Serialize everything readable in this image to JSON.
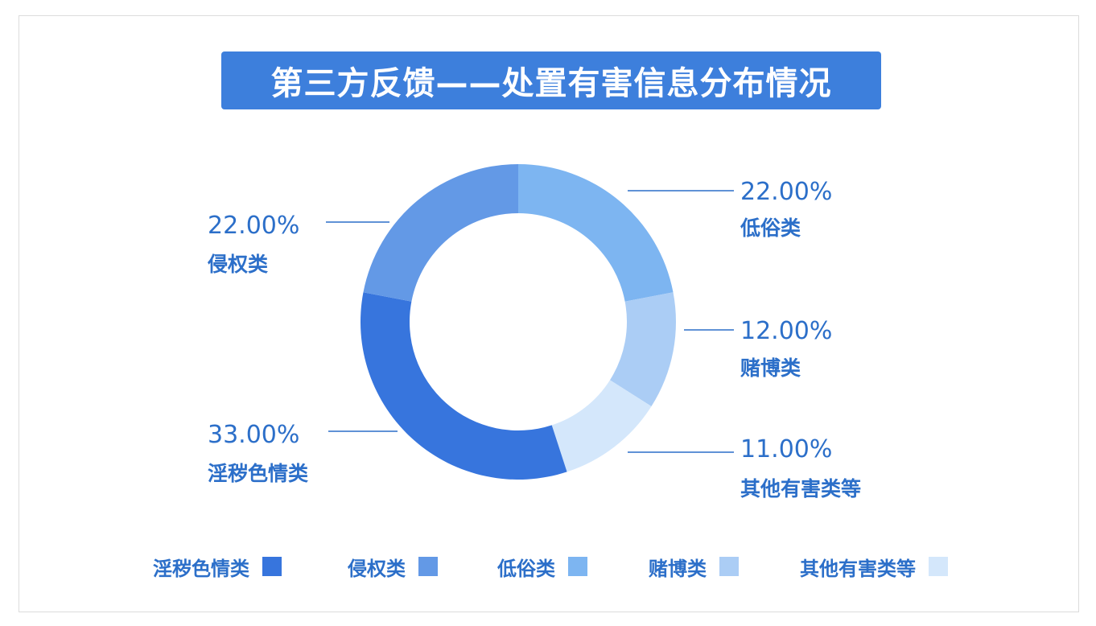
{
  "chart_data": {
    "type": "pie",
    "title": "第三方反馈——处置有害信息分布情况",
    "categories": [
      "淫秽色情类",
      "侵权类",
      "低俗类",
      "赌博类",
      "其他有害类等"
    ],
    "values": [
      33.0,
      22.0,
      22.0,
      12.0,
      11.0
    ],
    "value_labels": [
      "33.00%",
      "22.00%",
      "22.00%",
      "12.00%",
      "11.00%"
    ],
    "colors": [
      "#3775dd",
      "#6399e6",
      "#7db5f1",
      "#abcdf5",
      "#d4e7fb"
    ],
    "legend_position": "bottom",
    "style": "donut"
  }
}
